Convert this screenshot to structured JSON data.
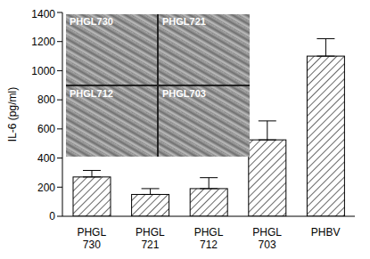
{
  "chart_data": {
    "type": "bar",
    "y_label": "IL-6 (pg/ml)",
    "categories": [
      "PHGL 730",
      "PHGL 721",
      "PHGL 712",
      "PHGL 703",
      "PHBV"
    ],
    "values": [
      270,
      150,
      190,
      525,
      1100
    ],
    "error": [
      45,
      40,
      75,
      130,
      120
    ],
    "color": "#000000",
    "ylim": [
      0,
      1400
    ],
    "yticks": [
      0,
      200,
      400,
      600,
      800,
      1000,
      1200,
      1400
    ],
    "grid": false,
    "annotations": [
      "PHGL730",
      "PHGL721",
      "PHGL712",
      "PHGL703"
    ]
  }
}
